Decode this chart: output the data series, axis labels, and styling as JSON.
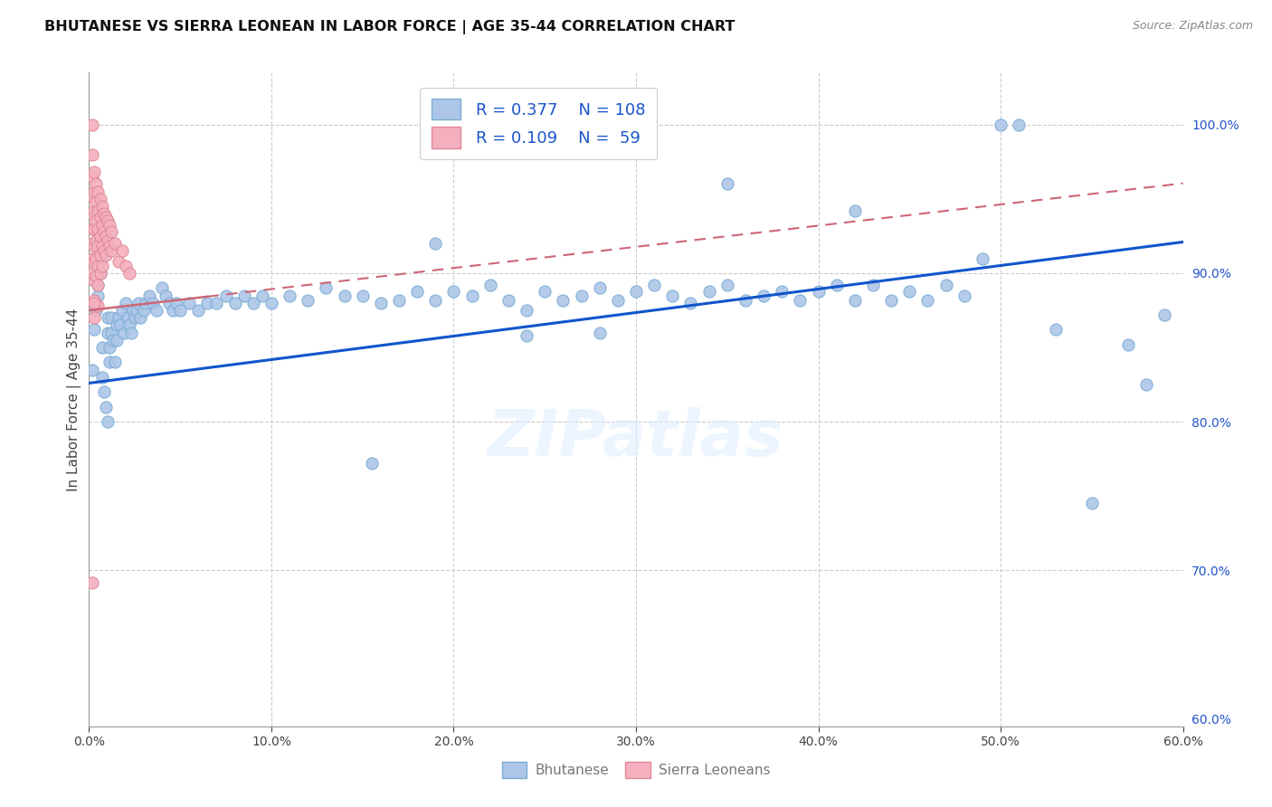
{
  "title": "BHUTANESE VS SIERRA LEONEAN IN LABOR FORCE | AGE 35-44 CORRELATION CHART",
  "source": "Source: ZipAtlas.com",
  "ylabel": "In Labor Force | Age 35-44",
  "x_range": [
    0.0,
    0.6
  ],
  "y_range": [
    0.595,
    1.035
  ],
  "blue_line_color": "#1155cc",
  "pink_line_color": "#cc6677",
  "scatter_blue": "#adc6e8",
  "scatter_pink": "#f4b0be",
  "scatter_blue_edge": "#7aacd4",
  "scatter_pink_edge": "#e08898",
  "blue_line_x0": 0.0,
  "blue_line_y0": 0.826,
  "blue_line_x1": 0.6,
  "blue_line_y1": 0.921,
  "pink_line_x0": 0.0,
  "pink_line_y0": 0.875,
  "pink_line_x1": 0.4,
  "pink_line_y1": 0.932,
  "watermark_text": "ZIPatlas",
  "legend_R_blue": "0.377",
  "legend_N_blue": "108",
  "legend_R_pink": "0.109",
  "legend_N_pink": " 59",
  "bhutanese_x": [
    0.002,
    0.003,
    0.004,
    0.005,
    0.005,
    0.006,
    0.006,
    0.007,
    0.007,
    0.008,
    0.009,
    0.01,
    0.01,
    0.01,
    0.011,
    0.011,
    0.012,
    0.012,
    0.013,
    0.014,
    0.015,
    0.015,
    0.016,
    0.017,
    0.018,
    0.019,
    0.02,
    0.021,
    0.022,
    0.023,
    0.024,
    0.025,
    0.026,
    0.027,
    0.028,
    0.03,
    0.031,
    0.033,
    0.035,
    0.037,
    0.04,
    0.042,
    0.044,
    0.046,
    0.048,
    0.05,
    0.055,
    0.06,
    0.065,
    0.07,
    0.075,
    0.08,
    0.085,
    0.09,
    0.095,
    0.1,
    0.11,
    0.12,
    0.13,
    0.14,
    0.15,
    0.16,
    0.17,
    0.18,
    0.19,
    0.2,
    0.21,
    0.22,
    0.23,
    0.24,
    0.25,
    0.26,
    0.27,
    0.28,
    0.29,
    0.3,
    0.31,
    0.32,
    0.33,
    0.34,
    0.35,
    0.36,
    0.37,
    0.38,
    0.39,
    0.4,
    0.41,
    0.42,
    0.43,
    0.44,
    0.45,
    0.46,
    0.47,
    0.48,
    0.49,
    0.5,
    0.51,
    0.53,
    0.55,
    0.57,
    0.58,
    0.59,
    0.35,
    0.42,
    0.28,
    0.19,
    0.24,
    0.155
  ],
  "bhutanese_y": [
    0.835,
    0.862,
    0.875,
    0.885,
    0.892,
    0.9,
    0.91,
    0.83,
    0.85,
    0.82,
    0.81,
    0.8,
    0.87,
    0.86,
    0.85,
    0.84,
    0.87,
    0.86,
    0.855,
    0.84,
    0.865,
    0.855,
    0.87,
    0.865,
    0.875,
    0.86,
    0.88,
    0.87,
    0.865,
    0.86,
    0.875,
    0.87,
    0.875,
    0.88,
    0.87,
    0.875,
    0.88,
    0.885,
    0.88,
    0.875,
    0.89,
    0.885,
    0.88,
    0.875,
    0.88,
    0.875,
    0.88,
    0.875,
    0.88,
    0.88,
    0.885,
    0.88,
    0.885,
    0.88,
    0.885,
    0.88,
    0.885,
    0.882,
    0.89,
    0.885,
    0.885,
    0.88,
    0.882,
    0.888,
    0.882,
    0.888,
    0.885,
    0.892,
    0.882,
    0.875,
    0.888,
    0.882,
    0.885,
    0.89,
    0.882,
    0.888,
    0.892,
    0.885,
    0.88,
    0.888,
    0.892,
    0.882,
    0.885,
    0.888,
    0.882,
    0.888,
    0.892,
    0.882,
    0.892,
    0.882,
    0.888,
    0.882,
    0.892,
    0.885,
    0.91,
    1.0,
    1.0,
    0.862,
    0.745,
    0.852,
    0.825,
    0.872,
    0.96,
    0.942,
    0.86,
    0.92,
    0.858,
    0.772
  ],
  "sierra_x": [
    0.002,
    0.002,
    0.002,
    0.002,
    0.002,
    0.002,
    0.002,
    0.002,
    0.002,
    0.003,
    0.003,
    0.003,
    0.003,
    0.003,
    0.003,
    0.003,
    0.003,
    0.003,
    0.004,
    0.004,
    0.004,
    0.004,
    0.004,
    0.004,
    0.005,
    0.005,
    0.005,
    0.005,
    0.005,
    0.005,
    0.005,
    0.006,
    0.006,
    0.006,
    0.006,
    0.006,
    0.007,
    0.007,
    0.007,
    0.007,
    0.008,
    0.008,
    0.008,
    0.009,
    0.009,
    0.009,
    0.01,
    0.01,
    0.011,
    0.011,
    0.012,
    0.012,
    0.014,
    0.016,
    0.018,
    0.02,
    0.022,
    0.003,
    0.002
  ],
  "sierra_y": [
    1.0,
    0.98,
    0.965,
    0.952,
    0.94,
    0.93,
    0.92,
    0.91,
    0.9,
    0.968,
    0.955,
    0.942,
    0.93,
    0.918,
    0.908,
    0.895,
    0.882,
    0.87,
    0.96,
    0.948,
    0.935,
    0.922,
    0.91,
    0.898,
    0.955,
    0.942,
    0.93,
    0.918,
    0.905,
    0.892,
    0.878,
    0.95,
    0.938,
    0.925,
    0.912,
    0.9,
    0.945,
    0.932,
    0.918,
    0.905,
    0.94,
    0.928,
    0.915,
    0.938,
    0.925,
    0.912,
    0.935,
    0.922,
    0.932,
    0.918,
    0.928,
    0.915,
    0.92,
    0.908,
    0.915,
    0.905,
    0.9,
    0.88,
    0.692
  ]
}
